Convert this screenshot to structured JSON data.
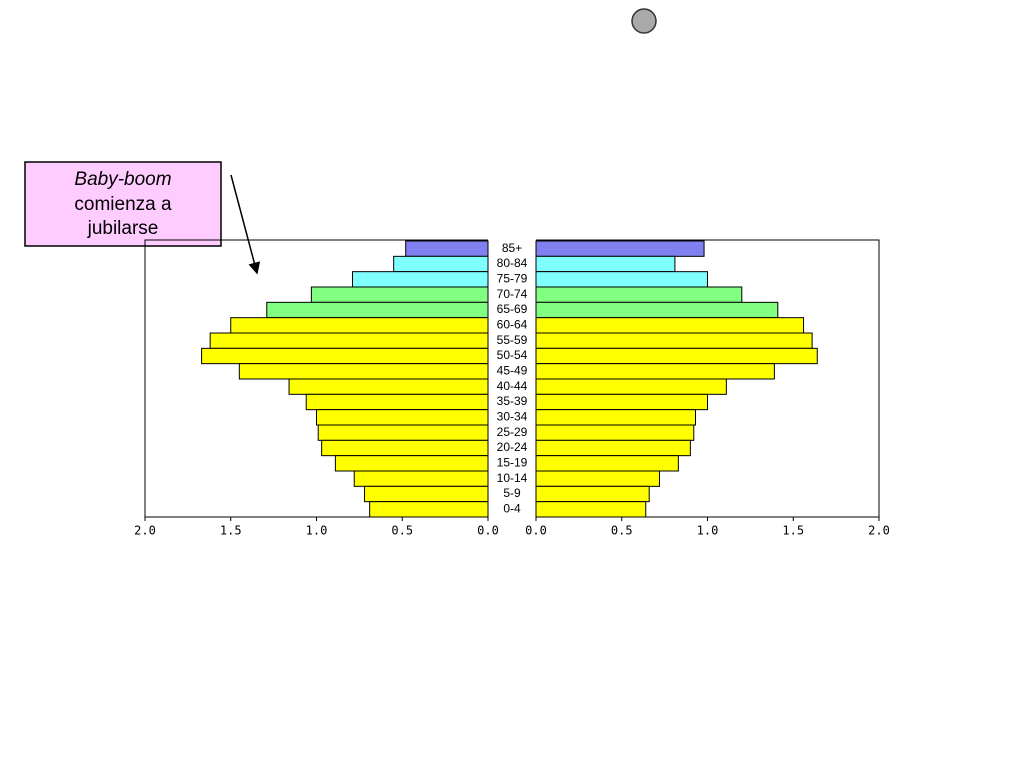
{
  "chart_data": {
    "type": "population_pyramid",
    "annotation": [
      "Baby-boom",
      "comienza a",
      "jubilarse"
    ],
    "categories": [
      "85+",
      "80-84",
      "75-79",
      "70-74",
      "65-69",
      "60-64",
      "55-59",
      "50-54",
      "45-49",
      "40-44",
      "35-39",
      "30-34",
      "25-29",
      "20-24",
      "15-19",
      "10-14",
      "5-9",
      "0-4"
    ],
    "bar_colors": [
      "#8080f0",
      "#80ffff",
      "#80ffff",
      "#80ff80",
      "#80ff80",
      "#ffff00",
      "#ffff00",
      "#ffff00",
      "#ffff00",
      "#ffff00",
      "#ffff00",
      "#ffff00",
      "#ffff00",
      "#ffff00",
      "#ffff00",
      "#ffff00",
      "#ffff00",
      "#ffff00"
    ],
    "series": [
      {
        "side": "left",
        "xlim": [
          2,
          0
        ],
        "xticks": [
          {
            "value": 2,
            "label": "2.0"
          },
          {
            "value": 1.5,
            "label": "1.5"
          },
          {
            "value": 1,
            "label": "1.0"
          },
          {
            "value": 0.5,
            "label": "0.5"
          },
          {
            "value": 0,
            "label": "0.0"
          }
        ],
        "values": [
          0.48,
          0.55,
          0.79,
          1.03,
          1.29,
          1.5,
          1.62,
          1.67,
          1.45,
          1.16,
          1.06,
          1.0,
          0.99,
          0.97,
          0.89,
          0.78,
          0.72,
          0.69
        ]
      },
      {
        "side": "right",
        "xlim": [
          0,
          2
        ],
        "xticks": [
          {
            "value": 0,
            "label": "0.0"
          },
          {
            "value": 0.5,
            "label": "0.5"
          },
          {
            "value": 1,
            "label": "1.0"
          },
          {
            "value": 1.5,
            "label": "1.5"
          },
          {
            "value": 2,
            "label": "2.0"
          }
        ],
        "values": [
          0.98,
          0.81,
          1.0,
          1.2,
          1.41,
          1.56,
          1.61,
          1.64,
          1.39,
          1.11,
          1.0,
          0.93,
          0.92,
          0.9,
          0.83,
          0.72,
          0.66,
          0.64
        ]
      }
    ]
  }
}
